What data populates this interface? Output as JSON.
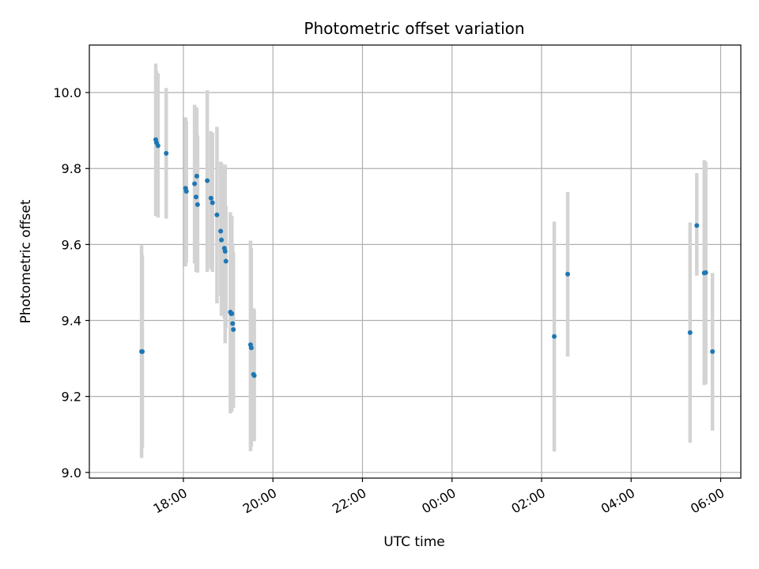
{
  "chart_data": {
    "type": "scatter",
    "title": "Photometric offset variation",
    "xlabel": "UTC time",
    "ylabel": "Photometric offset",
    "x_axis": "time (hours since 00:00 of the first day; values > 24 are next day)",
    "xlim_hours": [
      15.9,
      30.45
    ],
    "ylim": [
      8.985,
      10.125
    ],
    "x_ticks": [
      {
        "hour": 18,
        "label": "18:00"
      },
      {
        "hour": 20,
        "label": "20:00"
      },
      {
        "hour": 22,
        "label": "22:00"
      },
      {
        "hour": 24,
        "label": "00:00"
      },
      {
        "hour": 26,
        "label": "02:00"
      },
      {
        "hour": 28,
        "label": "04:00"
      },
      {
        "hour": 30,
        "label": "06:00"
      }
    ],
    "y_ticks": [
      {
        "value": 9.0,
        "label": "9.0"
      },
      {
        "value": 9.2,
        "label": "9.2"
      },
      {
        "value": 9.4,
        "label": "9.4"
      },
      {
        "value": 9.6,
        "label": "9.6"
      },
      {
        "value": 9.8,
        "label": "9.8"
      },
      {
        "value": 10.0,
        "label": "10.0"
      }
    ],
    "grid": true,
    "point_color": "#1f77b4",
    "errorbar_color": "#d3d3d3",
    "points": [
      {
        "t": "17:04",
        "y": 9.318,
        "lo": 9.038,
        "hi": 9.598
      },
      {
        "t": "17:05",
        "y": 9.318,
        "lo": 9.065,
        "hi": 9.572
      },
      {
        "t": "17:23",
        "y": 9.876,
        "lo": 9.675,
        "hi": 10.076
      },
      {
        "t": "17:24",
        "y": 9.868,
        "lo": 9.68,
        "hi": 10.057
      },
      {
        "t": "17:26",
        "y": 9.86,
        "lo": 9.671,
        "hi": 10.05
      },
      {
        "t": "17:37",
        "y": 9.84,
        "lo": 9.668,
        "hi": 10.012
      },
      {
        "t": "18:03",
        "y": 9.748,
        "lo": 9.542,
        "hi": 9.935
      },
      {
        "t": "18:04",
        "y": 9.74,
        "lo": 9.553,
        "hi": 9.925
      },
      {
        "t": "18:15",
        "y": 9.76,
        "lo": 9.55,
        "hi": 9.968
      },
      {
        "t": "18:17",
        "y": 9.725,
        "lo": 9.528,
        "hi": 9.962
      },
      {
        "t": "18:18",
        "y": 9.78,
        "lo": 9.56,
        "hi": 9.96
      },
      {
        "t": "18:19",
        "y": 9.705,
        "lo": 9.526,
        "hi": 9.887
      },
      {
        "t": "18:32",
        "y": 9.768,
        "lo": 9.528,
        "hi": 10.006
      },
      {
        "t": "18:37",
        "y": 9.722,
        "lo": 9.535,
        "hi": 9.898
      },
      {
        "t": "18:39",
        "y": 9.71,
        "lo": 9.528,
        "hi": 9.894
      },
      {
        "t": "18:45",
        "y": 9.678,
        "lo": 9.445,
        "hi": 9.91
      },
      {
        "t": "18:50",
        "y": 9.635,
        "lo": 9.465,
        "hi": 9.818
      },
      {
        "t": "18:51",
        "y": 9.612,
        "lo": 9.412,
        "hi": 9.815
      },
      {
        "t": "18:55",
        "y": 9.59,
        "lo": 9.405,
        "hi": 9.805
      },
      {
        "t": "18:56",
        "y": 9.582,
        "lo": 9.34,
        "hi": 9.81
      },
      {
        "t": "18:57",
        "y": 9.556,
        "lo": 9.38,
        "hi": 9.7
      },
      {
        "t": "19:03",
        "y": 9.422,
        "lo": 9.155,
        "hi": 9.685
      },
      {
        "t": "19:04",
        "y": 9.418,
        "lo": 9.17,
        "hi": 9.665
      },
      {
        "t": "19:05",
        "y": 9.418,
        "lo": 9.16,
        "hi": 9.675
      },
      {
        "t": "19:06",
        "y": 9.392,
        "lo": 9.19,
        "hi": 9.6
      },
      {
        "t": "19:07",
        "y": 9.376,
        "lo": 9.17,
        "hi": 9.58
      },
      {
        "t": "19:30",
        "y": 9.336,
        "lo": 9.056,
        "hi": 9.61
      },
      {
        "t": "19:31",
        "y": 9.328,
        "lo": 9.068,
        "hi": 9.59
      },
      {
        "t": "19:34",
        "y": 9.258,
        "lo": 9.085,
        "hi": 9.432
      },
      {
        "t": "19:35",
        "y": 9.255,
        "lo": 9.082,
        "hi": 9.428
      },
      {
        "t": "02:17",
        "y": 9.358,
        "lo": 9.055,
        "hi": 9.66
      },
      {
        "t": "02:35",
        "y": 9.522,
        "lo": 9.305,
        "hi": 9.738
      },
      {
        "t": "05:19",
        "y": 9.368,
        "lo": 9.078,
        "hi": 9.658
      },
      {
        "t": "05:28",
        "y": 9.65,
        "lo": 9.518,
        "hi": 9.788
      },
      {
        "t": "05:38",
        "y": 9.525,
        "lo": 9.23,
        "hi": 9.822
      },
      {
        "t": "05:40",
        "y": 9.526,
        "lo": 9.232,
        "hi": 9.818
      },
      {
        "t": "05:49",
        "y": 9.318,
        "lo": 9.11,
        "hi": 9.525
      }
    ]
  }
}
